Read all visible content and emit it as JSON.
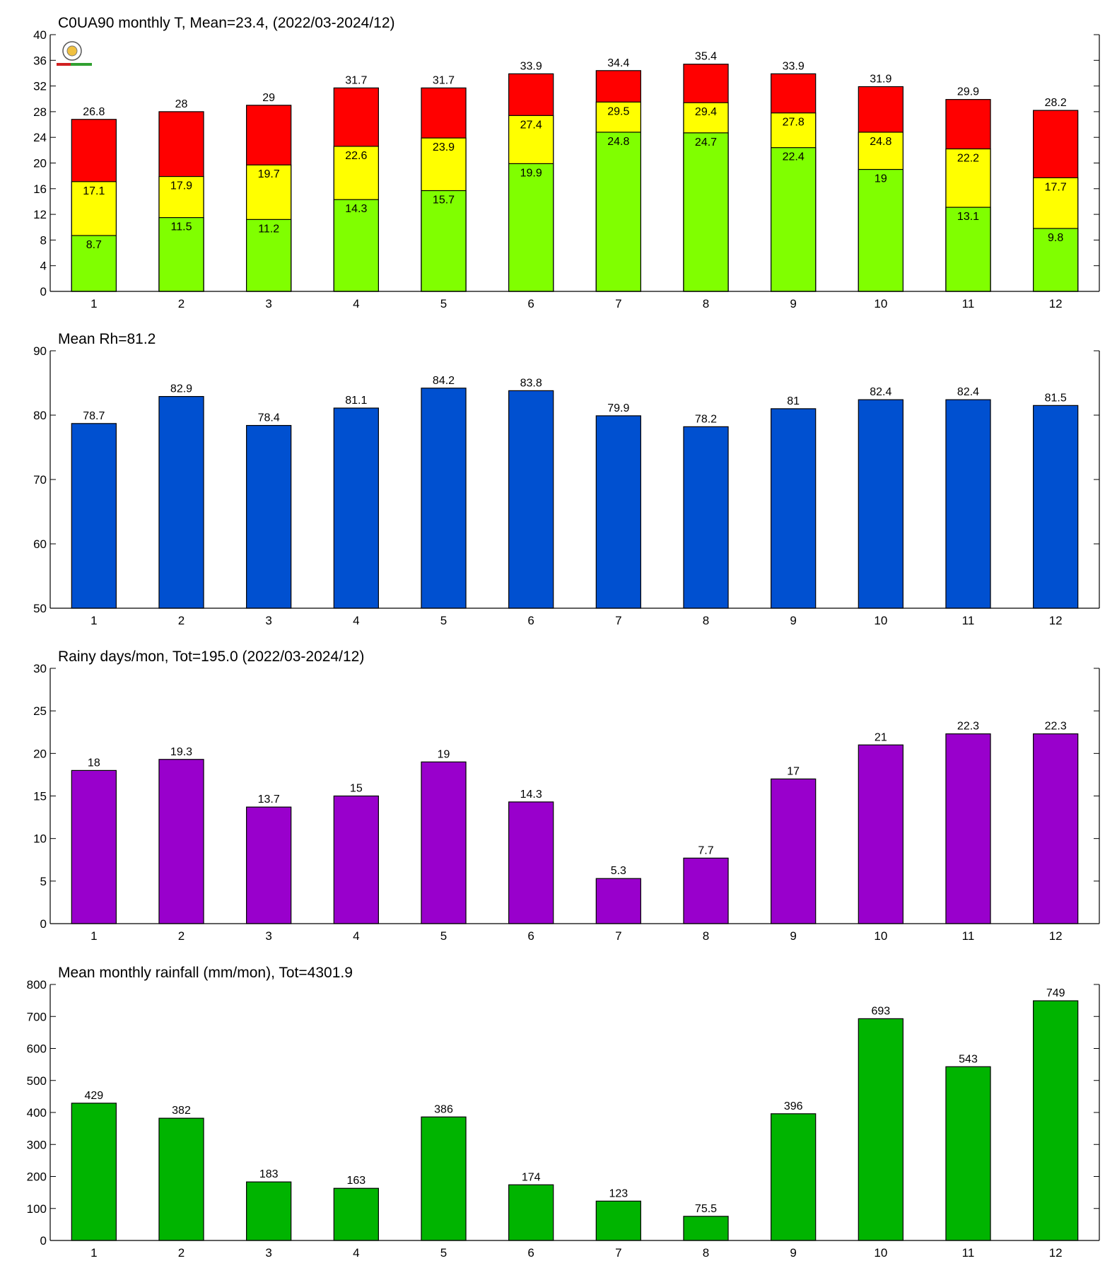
{
  "chart_data": [
    {
      "type": "overlap-bar",
      "title": "C0UA90 monthly T, Mean=23.4, (2022/03-2024/12)",
      "categories": [
        "1",
        "2",
        "3",
        "4",
        "5",
        "6",
        "7",
        "8",
        "9",
        "10",
        "11",
        "12"
      ],
      "series": [
        {
          "color": "#ff0000",
          "values": [
            26.8,
            28,
            29,
            31.7,
            31.7,
            33.9,
            34.4,
            35.4,
            33.9,
            31.9,
            29.9,
            28.2
          ]
        },
        {
          "color": "#ffff00",
          "values": [
            17.1,
            17.9,
            19.7,
            22.6,
            23.9,
            27.4,
            29.5,
            29.4,
            27.8,
            24.8,
            22.2,
            17.7
          ]
        },
        {
          "color": "#80ff00",
          "values": [
            8.7,
            11.5,
            11.2,
            14.3,
            15.7,
            19.9,
            24.8,
            24.7,
            22.4,
            19,
            13.1,
            9.8
          ]
        }
      ],
      "ylim": [
        0,
        40
      ],
      "yticks": [
        0,
        4,
        8,
        12,
        16,
        20,
        24,
        28,
        32,
        36,
        40
      ]
    },
    {
      "type": "bar",
      "title": "Mean Rh=81.2",
      "categories": [
        "1",
        "2",
        "3",
        "4",
        "5",
        "6",
        "7",
        "8",
        "9",
        "10",
        "11",
        "12"
      ],
      "values": [
        78.7,
        82.9,
        78.4,
        81.1,
        84.2,
        83.8,
        79.9,
        78.2,
        81,
        82.4,
        82.4,
        81.5
      ],
      "color": "#0050d0",
      "ylim": [
        50,
        90
      ],
      "yticks": [
        50,
        60,
        70,
        80,
        90
      ]
    },
    {
      "type": "bar",
      "title": "Rainy days/mon, Tot=195.0 (2022/03-2024/12)",
      "categories": [
        "1",
        "2",
        "3",
        "4",
        "5",
        "6",
        "7",
        "8",
        "9",
        "10",
        "11",
        "12"
      ],
      "values": [
        18,
        19.3,
        13.7,
        15,
        19,
        14.3,
        5.3,
        7.7,
        17,
        21,
        22.3,
        22.3
      ],
      "color": "#9900cc",
      "ylim": [
        0,
        30
      ],
      "yticks": [
        0,
        5,
        10,
        15,
        20,
        25,
        30
      ]
    },
    {
      "type": "bar",
      "title": "Mean monthly rainfall (mm/mon), Tot=4301.9",
      "categories": [
        "1",
        "2",
        "3",
        "4",
        "5",
        "6",
        "7",
        "8",
        "9",
        "10",
        "11",
        "12"
      ],
      "values": [
        429,
        382,
        183,
        163,
        386,
        174,
        123,
        75.5,
        396,
        693,
        543,
        749
      ],
      "color": "#00b400",
      "ylim": [
        0,
        800
      ],
      "yticks": [
        0,
        100,
        200,
        300,
        400,
        500,
        600,
        700,
        800
      ]
    }
  ]
}
